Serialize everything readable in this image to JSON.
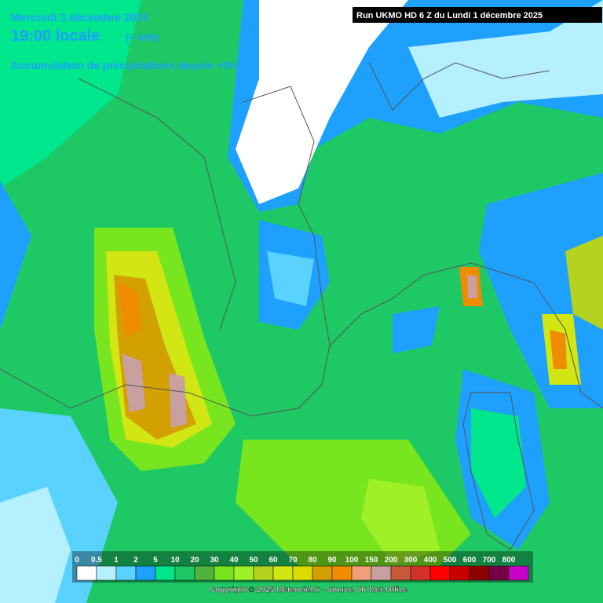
{
  "header": {
    "date": "Mercredi 3 décembre 2025",
    "time": "19:00 locale",
    "offset": "(+ 60h)",
    "subtitle": "Accumulation de précipitations depuis +0h",
    "run": "Run UKMO HD 6 Z du Lundi 1 décembre 2025"
  },
  "legend": {
    "labels": [
      0,
      0.5,
      1,
      2,
      5,
      10,
      20,
      30,
      40,
      50,
      60,
      70,
      80,
      90,
      100,
      150,
      200,
      300,
      400,
      500,
      600,
      700,
      800
    ],
    "colors": [
      "#ffffff",
      "#b4f0ff",
      "#5ad2ff",
      "#1ea0ff",
      "#00e68c",
      "#1ec864",
      "#50b43c",
      "#78e61e",
      "#a0f028",
      "#b4d21e",
      "#d2e614",
      "#dcdc00",
      "#d2a000",
      "#f08c00",
      "#f0a078",
      "#c8a0a0",
      "#c85a3c",
      "#d23228",
      "#ff0000",
      "#c80000",
      "#8c0000",
      "#780046",
      "#c800c8"
    ]
  },
  "copyright": "Copyright © 2025 Meteociel.fr - Source UK Met-Office"
}
